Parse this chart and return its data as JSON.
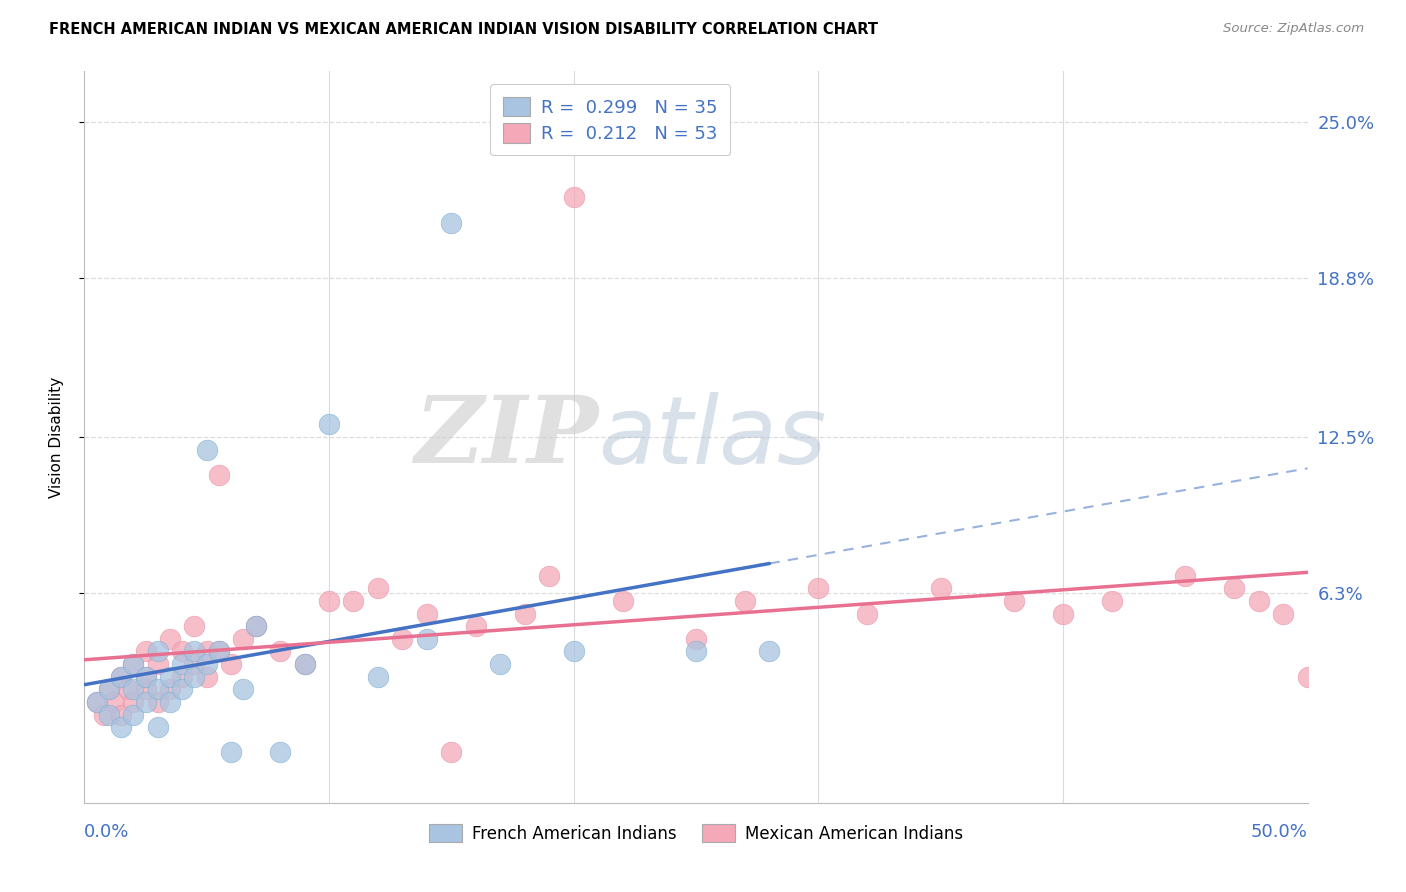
{
  "title": "FRENCH AMERICAN INDIAN VS MEXICAN AMERICAN INDIAN VISION DISABILITY CORRELATION CHART",
  "source": "Source: ZipAtlas.com",
  "ylabel": "Vision Disability",
  "ytick_labels": [
    "25.0%",
    "18.8%",
    "12.5%",
    "6.3%"
  ],
  "ytick_values": [
    25.0,
    18.8,
    12.5,
    6.3
  ],
  "xlim": [
    0.0,
    50.0
  ],
  "ylim": [
    -2.0,
    27.0
  ],
  "blue_color": "#A8C4E0",
  "pink_color": "#F4A8B8",
  "blue_line_color": "#4472C4",
  "pink_line_color": "#E87090",
  "blue_scatter_edge": "#7AAED0",
  "pink_scatter_edge": "#E890A8",
  "R_blue": 0.299,
  "N_blue": 35,
  "R_pink": 0.212,
  "N_pink": 53,
  "legend_label_blue": "French American Indians",
  "legend_label_pink": "Mexican American Indians",
  "blue_scatter_x": [
    0.5,
    1.0,
    1.0,
    1.5,
    1.5,
    2.0,
    2.0,
    2.0,
    2.5,
    2.5,
    3.0,
    3.0,
    3.0,
    3.5,
    3.5,
    4.0,
    4.0,
    4.5,
    4.5,
    5.0,
    5.0,
    5.5,
    6.0,
    6.5,
    7.0,
    8.0,
    9.0,
    10.0,
    12.0,
    14.0,
    15.0,
    17.0,
    20.0,
    25.0,
    28.0
  ],
  "blue_scatter_y": [
    2.0,
    1.5,
    2.5,
    1.0,
    3.0,
    1.5,
    2.5,
    3.5,
    2.0,
    3.0,
    1.0,
    2.5,
    4.0,
    2.0,
    3.0,
    2.5,
    3.5,
    3.0,
    4.0,
    3.5,
    12.0,
    4.0,
    0.0,
    2.5,
    5.0,
    0.0,
    3.5,
    13.0,
    3.0,
    4.5,
    21.0,
    3.5,
    4.0,
    4.0,
    4.0
  ],
  "pink_scatter_x": [
    0.5,
    0.8,
    1.0,
    1.2,
    1.5,
    1.5,
    1.8,
    2.0,
    2.0,
    2.5,
    2.5,
    2.5,
    3.0,
    3.0,
    3.5,
    3.5,
    4.0,
    4.0,
    4.5,
    4.5,
    5.0,
    5.0,
    5.5,
    5.5,
    6.0,
    6.5,
    7.0,
    8.0,
    9.0,
    10.0,
    11.0,
    12.0,
    13.0,
    14.0,
    15.0,
    16.0,
    18.0,
    19.0,
    20.0,
    22.0,
    25.0,
    27.0,
    30.0,
    32.0,
    35.0,
    38.0,
    40.0,
    42.0,
    45.0,
    47.0,
    48.0,
    49.0,
    50.0
  ],
  "pink_scatter_y": [
    2.0,
    1.5,
    2.5,
    2.0,
    1.5,
    3.0,
    2.5,
    2.0,
    3.5,
    2.5,
    3.0,
    4.0,
    2.0,
    3.5,
    2.5,
    4.5,
    3.0,
    4.0,
    3.5,
    5.0,
    3.0,
    4.0,
    4.0,
    11.0,
    3.5,
    4.5,
    5.0,
    4.0,
    3.5,
    6.0,
    6.0,
    6.5,
    4.5,
    5.5,
    0.0,
    5.0,
    5.5,
    7.0,
    22.0,
    6.0,
    4.5,
    6.0,
    6.5,
    5.5,
    6.5,
    6.0,
    5.5,
    6.0,
    7.0,
    6.5,
    6.0,
    5.5,
    3.0
  ],
  "watermark_zip": "ZIP",
  "watermark_atlas": "atlas",
  "background_color": "#FFFFFF",
  "grid_color": "#CCCCCC",
  "grid_dash_color": "#DDDDDD"
}
